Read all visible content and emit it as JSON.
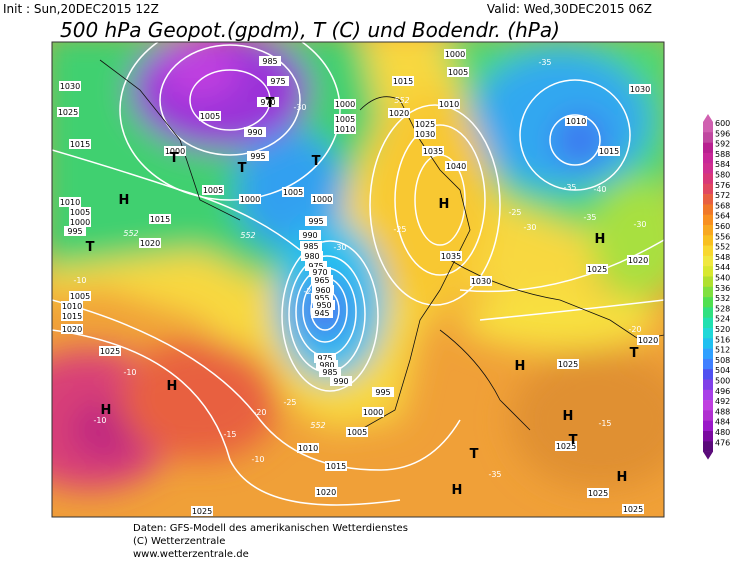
{
  "header": {
    "init": "Init : Sun,20DEC2015 12Z",
    "valid": "Valid: Wed,30DEC2015 06Z",
    "title": "500 hPa Geopot.(gpdm), T (C) und Bodendr. (hPa)"
  },
  "map": {
    "isobar_labels": [
      1030,
      1025,
      1015,
      1010,
      1005,
      1000,
      995,
      1005,
      1010,
      1015,
      1020,
      1025,
      1005,
      990,
      995,
      1000,
      1005,
      1000,
      1020,
      1015,
      985,
      975,
      970,
      1005,
      1000,
      995,
      990,
      985,
      980,
      975,
      970,
      965,
      960,
      955,
      950,
      945,
      975,
      980,
      985,
      990,
      995,
      1000,
      1005,
      1010,
      1015,
      1020,
      1025,
      1000,
      1005,
      1010,
      1015,
      1010,
      1005,
      1000,
      1020,
      1025,
      1030,
      1035,
      1040,
      1035,
      1030,
      1025,
      1020,
      1025,
      1025,
      1025,
      1025,
      1030,
      1015,
      1010,
      1020
    ],
    "temperature_labels": [
      -10,
      -10,
      -10,
      -15,
      -20,
      -25,
      -30,
      -30,
      -35,
      -25,
      -30,
      -35,
      -40,
      -35,
      -30,
      -20,
      -15,
      -10,
      -35,
      -25,
      -20
    ],
    "geopotential_labels": [
      552,
      552,
      552,
      552
    ],
    "centers": [
      "H",
      "H",
      "H",
      "H",
      "H",
      "H",
      "H",
      "H",
      "H",
      "H",
      "T",
      "T",
      "T",
      "T",
      "T",
      "T",
      "T",
      "T"
    ]
  },
  "colorbar": {
    "ticks": [
      600,
      596,
      592,
      588,
      584,
      580,
      576,
      572,
      568,
      564,
      560,
      556,
      552,
      548,
      544,
      540,
      536,
      532,
      528,
      524,
      520,
      516,
      512,
      508,
      504,
      500,
      496,
      492,
      488,
      484,
      480,
      476
    ]
  },
  "footer": {
    "lines": [
      "Daten: GFS-Modell des amerikanischen Wetterdienstes",
      "(C) Wetterzentrale",
      "www.wetterzentrale.de"
    ]
  }
}
